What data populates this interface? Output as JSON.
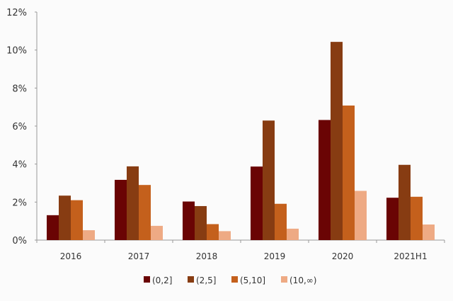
{
  "chart_data": {
    "type": "bar",
    "title": "",
    "xlabel": "",
    "ylabel": "",
    "categories": [
      "2016",
      "2017",
      "2018",
      "2019",
      "2020",
      "2021H1"
    ],
    "ylim": [
      0,
      12
    ],
    "yticks": [
      "0%",
      "2%",
      "4%",
      "6%",
      "8%",
      "10%",
      "12%"
    ],
    "ytick_values": [
      0,
      2,
      4,
      6,
      8,
      10,
      12
    ],
    "grid": false,
    "legend_position": "bottom",
    "series": [
      {
        "name": "(0,2]",
        "color": "#6a0404",
        "values": [
          1.31,
          3.17,
          2.03,
          3.87,
          6.32,
          2.23
        ]
      },
      {
        "name": "(2,5]",
        "color": "#873c12",
        "values": [
          2.34,
          3.88,
          1.79,
          6.29,
          10.43,
          3.96
        ]
      },
      {
        "name": "(5,10]",
        "color": "#c4601c",
        "values": [
          2.1,
          2.9,
          0.84,
          1.91,
          7.08,
          2.28
        ]
      },
      {
        "name": "(10,∞)",
        "color": "#eeaa84",
        "values": [
          0.52,
          0.75,
          0.47,
          0.6,
          2.59,
          0.82
        ]
      }
    ]
  }
}
